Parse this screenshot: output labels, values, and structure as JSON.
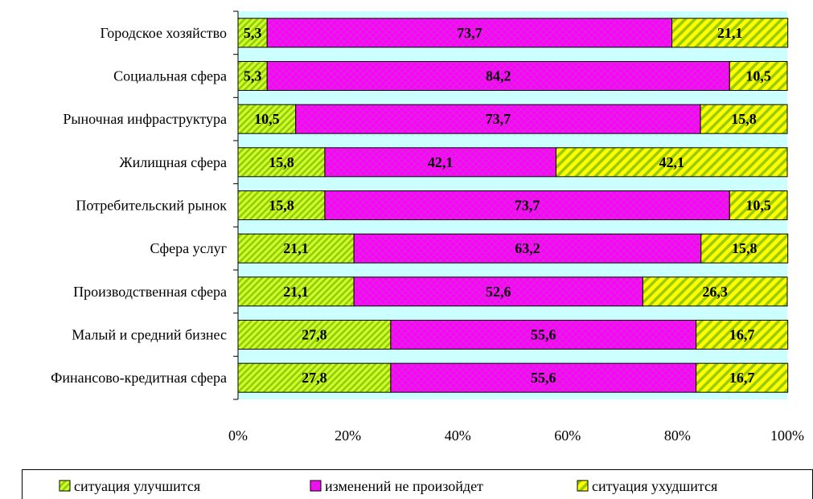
{
  "chart_data": {
    "type": "bar",
    "orientation": "horizontal",
    "stacked": "percent",
    "categories": [
      "Городское хозяйство",
      "Социальная сфера",
      "Рыночная инфраструктура",
      "Жилищная сфера",
      "Потребительский рынок",
      "Сфера услуг",
      "Производственная сфера",
      "Малый и средний бизнес",
      "Финансово-кредитная сфера"
    ],
    "series": [
      {
        "name": "ситуация улучшится",
        "values": [
          5.3,
          5.3,
          10.5,
          15.8,
          15.8,
          21.1,
          21.1,
          27.8,
          27.8
        ],
        "labels": [
          "5,3",
          "5,3",
          "10,5",
          "15,8",
          "15,8",
          "21,1",
          "21,1",
          "27,8",
          "27,8"
        ]
      },
      {
        "name": "изменений не произойдет",
        "values": [
          73.7,
          84.2,
          73.7,
          42.1,
          73.7,
          63.2,
          52.6,
          55.6,
          55.6
        ],
        "labels": [
          "73,7",
          "84,2",
          "73,7",
          "42,1",
          "73,7",
          "63,2",
          "52,6",
          "55,6",
          "55,6"
        ]
      },
      {
        "name": "ситуация ухудшится",
        "values": [
          21.1,
          10.5,
          15.8,
          42.1,
          10.5,
          15.8,
          26.3,
          16.7,
          16.7
        ],
        "labels": [
          "21,1",
          "10,5",
          "15,8",
          "42,1",
          "10,5",
          "15,8",
          "26,3",
          "16,7",
          "16,7"
        ]
      }
    ],
    "x_ticks": [
      "0%",
      "20%",
      "40%",
      "60%",
      "80%",
      "100%"
    ],
    "xlim": [
      0,
      100
    ],
    "title": "",
    "xlabel": "",
    "ylabel": "",
    "legend_position": "bottom",
    "plot_background": "#ccffff",
    "colors": {
      "series1_fg": "#99cc00",
      "series1_bg": "#ccff33",
      "series2_fg": "#ff00ff",
      "series2_bg": "#cc33cc",
      "series3_fg": "#99cc00",
      "series3_bg": "#ffff00"
    }
  }
}
